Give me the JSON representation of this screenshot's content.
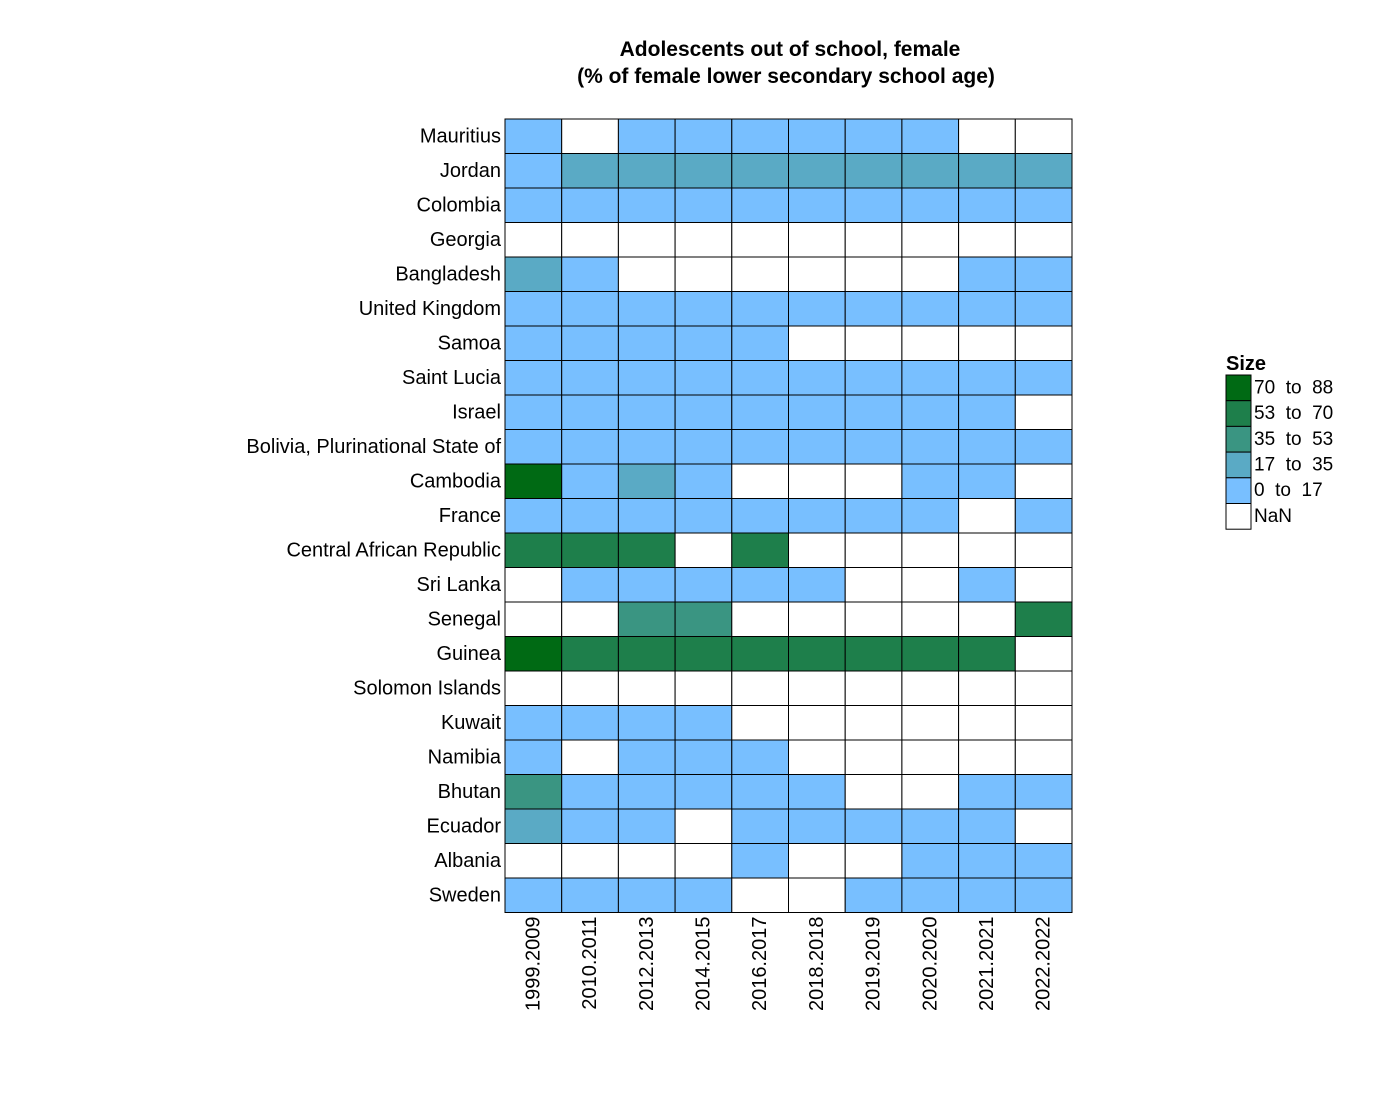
{
  "chart_data": {
    "type": "heatmap",
    "title": "Adolescents out of school, female",
    "subtitle": "(% of female lower secondary school age)",
    "x": [
      "1999.2009",
      "2010.2011",
      "2012.2013",
      "2014.2015",
      "2016.2017",
      "2018.2018",
      "2019.2019",
      "2020.2020",
      "2021.2021",
      "2022.2022"
    ],
    "y": [
      "Mauritius",
      "Jordan",
      "Colombia",
      "Georgia",
      "Bangladesh",
      "United Kingdom",
      "Samoa",
      "Saint Lucia",
      "Israel",
      "Bolivia, Plurinational State of",
      "Cambodia",
      "France",
      "Central African Republic",
      "Sri Lanka",
      "Senegal",
      "Guinea",
      "Solomon Islands",
      "Kuwait",
      "Namibia",
      "Bhutan",
      "Ecuador",
      "Albania",
      "Sweden"
    ],
    "values": [
      [
        5,
        null,
        4,
        4,
        4,
        4,
        4,
        4,
        null,
        null
      ],
      [
        8,
        25,
        25,
        25,
        25,
        25,
        25,
        25,
        25,
        25
      ],
      [
        8,
        7,
        7,
        7,
        7,
        7,
        7,
        7,
        7,
        7
      ],
      [
        null,
        null,
        null,
        null,
        null,
        null,
        null,
        null,
        null,
        null
      ],
      [
        30,
        15,
        null,
        null,
        null,
        null,
        null,
        null,
        12,
        12
      ],
      [
        2,
        2,
        2,
        2,
        2,
        2,
        2,
        2,
        2,
        2
      ],
      [
        3,
        3,
        3,
        3,
        3,
        null,
        null,
        null,
        null,
        null
      ],
      [
        6,
        6,
        6,
        6,
        6,
        6,
        6,
        6,
        6,
        6
      ],
      [
        2,
        2,
        2,
        2,
        2,
        2,
        2,
        2,
        2,
        null
      ],
      [
        10,
        10,
        10,
        10,
        10,
        10,
        10,
        10,
        10,
        10
      ],
      [
        78,
        14,
        22,
        12,
        null,
        null,
        null,
        12,
        12,
        null
      ],
      [
        1,
        1,
        1,
        1,
        1,
        1,
        1,
        1,
        null,
        1
      ],
      [
        62,
        60,
        58,
        null,
        58,
        null,
        null,
        null,
        null,
        null
      ],
      [
        null,
        3,
        3,
        3,
        3,
        3,
        null,
        null,
        3,
        null
      ],
      [
        null,
        null,
        45,
        44,
        null,
        null,
        null,
        null,
        null,
        55
      ],
      [
        75,
        58,
        58,
        58,
        58,
        58,
        58,
        58,
        58,
        null
      ],
      [
        null,
        null,
        null,
        null,
        null,
        null,
        null,
        null,
        null,
        null
      ],
      [
        5,
        5,
        5,
        5,
        null,
        null,
        null,
        null,
        null,
        null
      ],
      [
        10,
        null,
        10,
        10,
        10,
        null,
        null,
        null,
        null,
        null
      ],
      [
        40,
        12,
        12,
        12,
        12,
        12,
        null,
        null,
        12,
        12
      ],
      [
        25,
        10,
        10,
        null,
        10,
        10,
        10,
        10,
        10,
        null
      ],
      [
        null,
        null,
        null,
        null,
        3,
        null,
        null,
        3,
        3,
        3
      ],
      [
        1,
        1,
        1,
        1,
        null,
        null,
        1,
        1,
        1,
        1
      ]
    ],
    "legend": {
      "title": "Size",
      "placement": "right",
      "bins": [
        {
          "label": "70  to  88",
          "min": 70,
          "max": 88,
          "color": "#006a14"
        },
        {
          "label": "53  to  70",
          "min": 53,
          "max": 70,
          "color": "#1e7f4b"
        },
        {
          "label": "35  to  53",
          "min": 35,
          "max": 53,
          "color": "#3a9582"
        },
        {
          "label": "17  to  35",
          "min": 17,
          "max": 35,
          "color": "#5aaac5"
        },
        {
          "label": "0  to  17",
          "min": 0,
          "max": 17,
          "color": "#78bfff"
        },
        {
          "label": "NaN",
          "min": null,
          "max": null,
          "color": "#ffffff"
        }
      ]
    }
  }
}
